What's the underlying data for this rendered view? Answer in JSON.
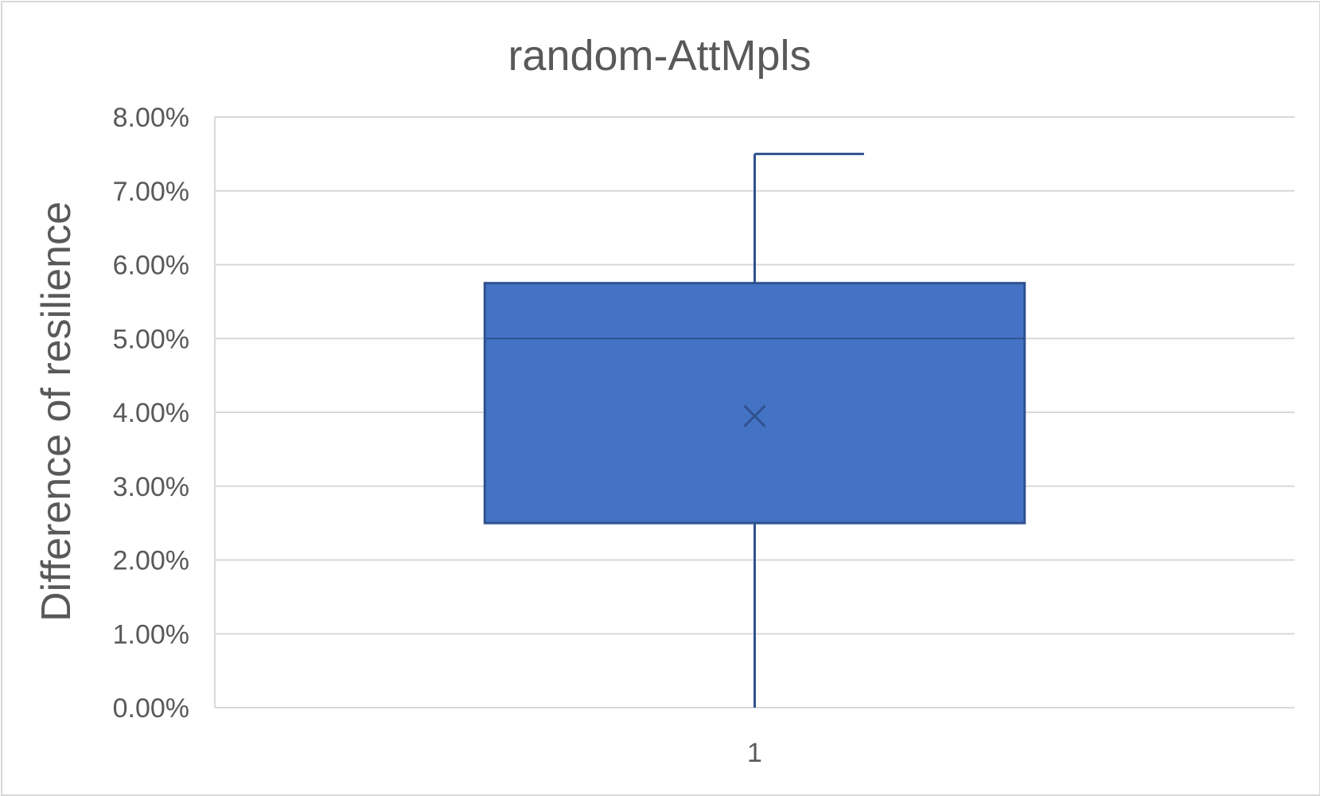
{
  "chart_data": {
    "type": "box",
    "title": "random-AttMpls",
    "xlabel": "",
    "ylabel": "Difference of resilience",
    "ylim": [
      0,
      0.08
    ],
    "y_ticks": [
      "0.00%",
      "1.00%",
      "2.00%",
      "3.00%",
      "4.00%",
      "5.00%",
      "6.00%",
      "7.00%",
      "8.00%"
    ],
    "categories": [
      "1"
    ],
    "series": [
      {
        "min": 0.0,
        "q1": 0.025,
        "median": 0.05,
        "q3": 0.0575,
        "max": 0.075,
        "mean": 0.0395
      }
    ],
    "grid": true,
    "legend": "none",
    "colors": {
      "box": "#4472c4",
      "line": "#2f528f",
      "grid": "#d9d9d9",
      "text": "#595959"
    }
  }
}
